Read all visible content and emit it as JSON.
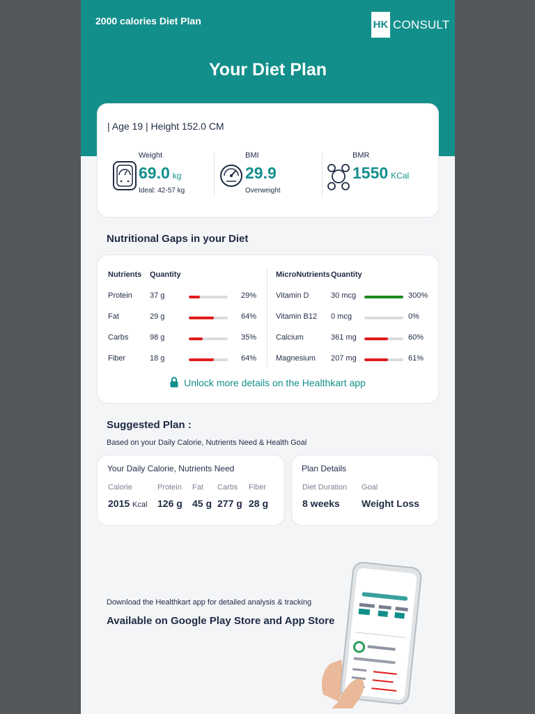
{
  "header": {
    "doc_title": "2000 calories Diet Plan",
    "logo": {
      "left": "HK",
      "right": "CONSULT"
    },
    "title": "Your Diet Plan"
  },
  "profile": {
    "summary": "| Age 19 | Height 152.0 CM",
    "weight": {
      "label": "Weight",
      "value": "69.0",
      "unit": "kg",
      "sub": "Ideal: 42-57 kg",
      "icon": "weighing-scale-icon"
    },
    "bmi": {
      "label": "BMI",
      "value": "29.9",
      "sub": "Overweight",
      "icon": "gauge-icon"
    },
    "bmr": {
      "label": "BMR",
      "value": "1550",
      "unit": "KCal",
      "icon": "metabolism-icon"
    }
  },
  "gaps": {
    "title": "Nutritional Gaps in your Diet",
    "macro": {
      "headers": [
        "Nutrients",
        "Quantity"
      ],
      "rows": [
        {
          "name": "Protein",
          "qty": "37 g",
          "pct": "29%",
          "fill": 0.29
        },
        {
          "name": "Fat",
          "qty": "29 g",
          "pct": "64%",
          "fill": 0.64
        },
        {
          "name": "Carbs",
          "qty": "98 g",
          "pct": "35%",
          "fill": 0.35
        },
        {
          "name": "Fiber",
          "qty": "18 g",
          "pct": "64%",
          "fill": 0.64
        }
      ]
    },
    "micro": {
      "headers": [
        "MicroNutrients",
        "Quantity"
      ],
      "rows": [
        {
          "name": "Vitamin D",
          "qty": "30 mcg",
          "pct": "300%",
          "fill": 1.0,
          "good": true
        },
        {
          "name": "Vitamin B12",
          "qty": "0 mcg",
          "pct": "0%",
          "fill": 0.0
        },
        {
          "name": "Calcium",
          "qty": "361 mg",
          "pct": "60%",
          "fill": 0.6
        },
        {
          "name": "Magnesium",
          "qty": "207 mg",
          "pct": "61%",
          "fill": 0.61
        }
      ]
    },
    "unlock": "Unlock more details on the Healthkart app"
  },
  "plan": {
    "title": "Suggested Plan :",
    "subtitle": "Based on your Daily Calorie, Nutrients Need & Health Goal",
    "need": {
      "title": "Your Daily Calorie, Nutrients Need",
      "calorie": {
        "label": "Calorie",
        "value": "2015",
        "unit": "Kcal"
      },
      "protein": {
        "label": "Protein",
        "value": "126 g"
      },
      "fat": {
        "label": "Fat",
        "value": "45 g"
      },
      "carbs": {
        "label": "Carbs",
        "value": "277 g"
      },
      "fiber": {
        "label": "Fiber",
        "value": "28 g"
      }
    },
    "details": {
      "title": "Plan Details",
      "duration": {
        "label": "Diet Duration",
        "value": "8 weeks"
      },
      "goal": {
        "label": "Goal",
        "value": "Weight Loss"
      }
    }
  },
  "download": {
    "text": "Download the Healthkart app for detailed analysis & tracking",
    "stores": "Available on Google Play Store and App Store"
  },
  "colors": {
    "teal": "#138f8b",
    "deficit": "#e11d1d",
    "surplus": "#1f8a1f",
    "track": "#d9dcdf",
    "background": "#54585b"
  }
}
